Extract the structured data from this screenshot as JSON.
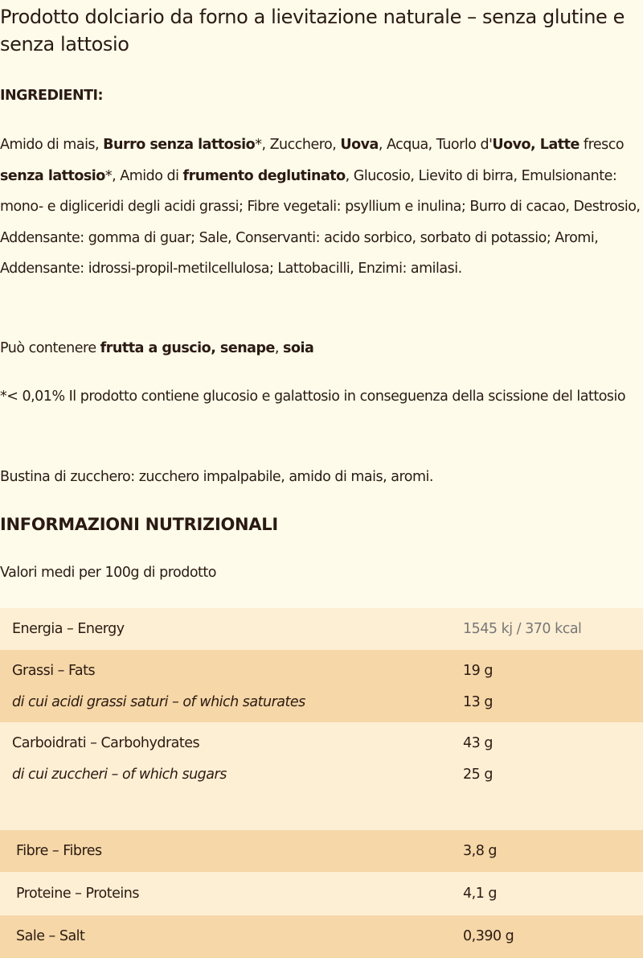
{
  "title": "Prodotto dolciario da forno a lievitazione naturale – senza glutine e senza lattosio",
  "ingredients_heading": "INGREDIENTI:",
  "ingredients": [
    {
      "t": "Amido di mais, ",
      "b": false
    },
    {
      "t": "Burro senza lattosio",
      "b": true
    },
    {
      "t": "*, Zucchero, ",
      "b": false
    },
    {
      "t": "Uova",
      "b": true
    },
    {
      "t": ", Acqua, Tuorlo d'",
      "b": false
    },
    {
      "t": "Uovo, Latte",
      "b": true
    },
    {
      "t": " fresco ",
      "b": false
    },
    {
      "t": "senza lattosio",
      "b": true
    },
    {
      "t": "*, Amido di ",
      "b": false
    },
    {
      "t": "frumento deglutinato",
      "b": true
    },
    {
      "t": ", Glucosio, Lievito di birra, Emulsionante: mono- e digliceridi degli acidi grassi; Fibre vegetali: psyllium e inulina; Burro di cacao, Destrosio, Addensante: gomma di guar; Sale, Conservanti: acido sorbico, sorbato di potassio; Aromi, Addensante: idrossi-propil-metilcellulosa; Lattobacilli, Enzimi: amilasi.",
      "b": false
    }
  ],
  "may_contain": [
    {
      "t": "Può contenere ",
      "b": false
    },
    {
      "t": "frutta a guscio, senape",
      "b": true
    },
    {
      "t": ", ",
      "b": false
    },
    {
      "t": "soia",
      "b": true
    }
  ],
  "footnote": "*< 0,01% Il prodotto contiene glucosio e galattosio in conseguenza della scissione del lattosio",
  "sugar_sachet": "Bustina di zucchero: zucchero impalpabile, amido di mais, aromi.",
  "nutrition": {
    "heading": "INFORMAZIONI NUTRIZIONALI",
    "subheading": "Valori medi per 100g di prodotto",
    "energy": {
      "label": "Energia – Energy",
      "value": "1545 kj / 370 kcal"
    },
    "fats": {
      "label": "Grassi – Fats",
      "value": "19 g",
      "sub_label": "di cui acidi grassi saturi – of which saturates",
      "sub_value": "13 g"
    },
    "carbs": {
      "label": "Carboidrati – Carbohydrates",
      "value": "43 g",
      "sub_label": "di cui zuccheri – of which sugars",
      "sub_value": "25 g"
    },
    "fibre": {
      "label": "Fibre – Fibres",
      "value": "3,8 g"
    },
    "proteins": {
      "label": "Proteine – Proteins",
      "value": "4,1 g"
    },
    "salt": {
      "label": "Sale – Salt",
      "value": "0,390 g"
    }
  },
  "colors": {
    "background": "#fffbea",
    "row_light": "#fdefd4",
    "row_dark": "#f6d8a8",
    "text": "#2a1a12"
  }
}
